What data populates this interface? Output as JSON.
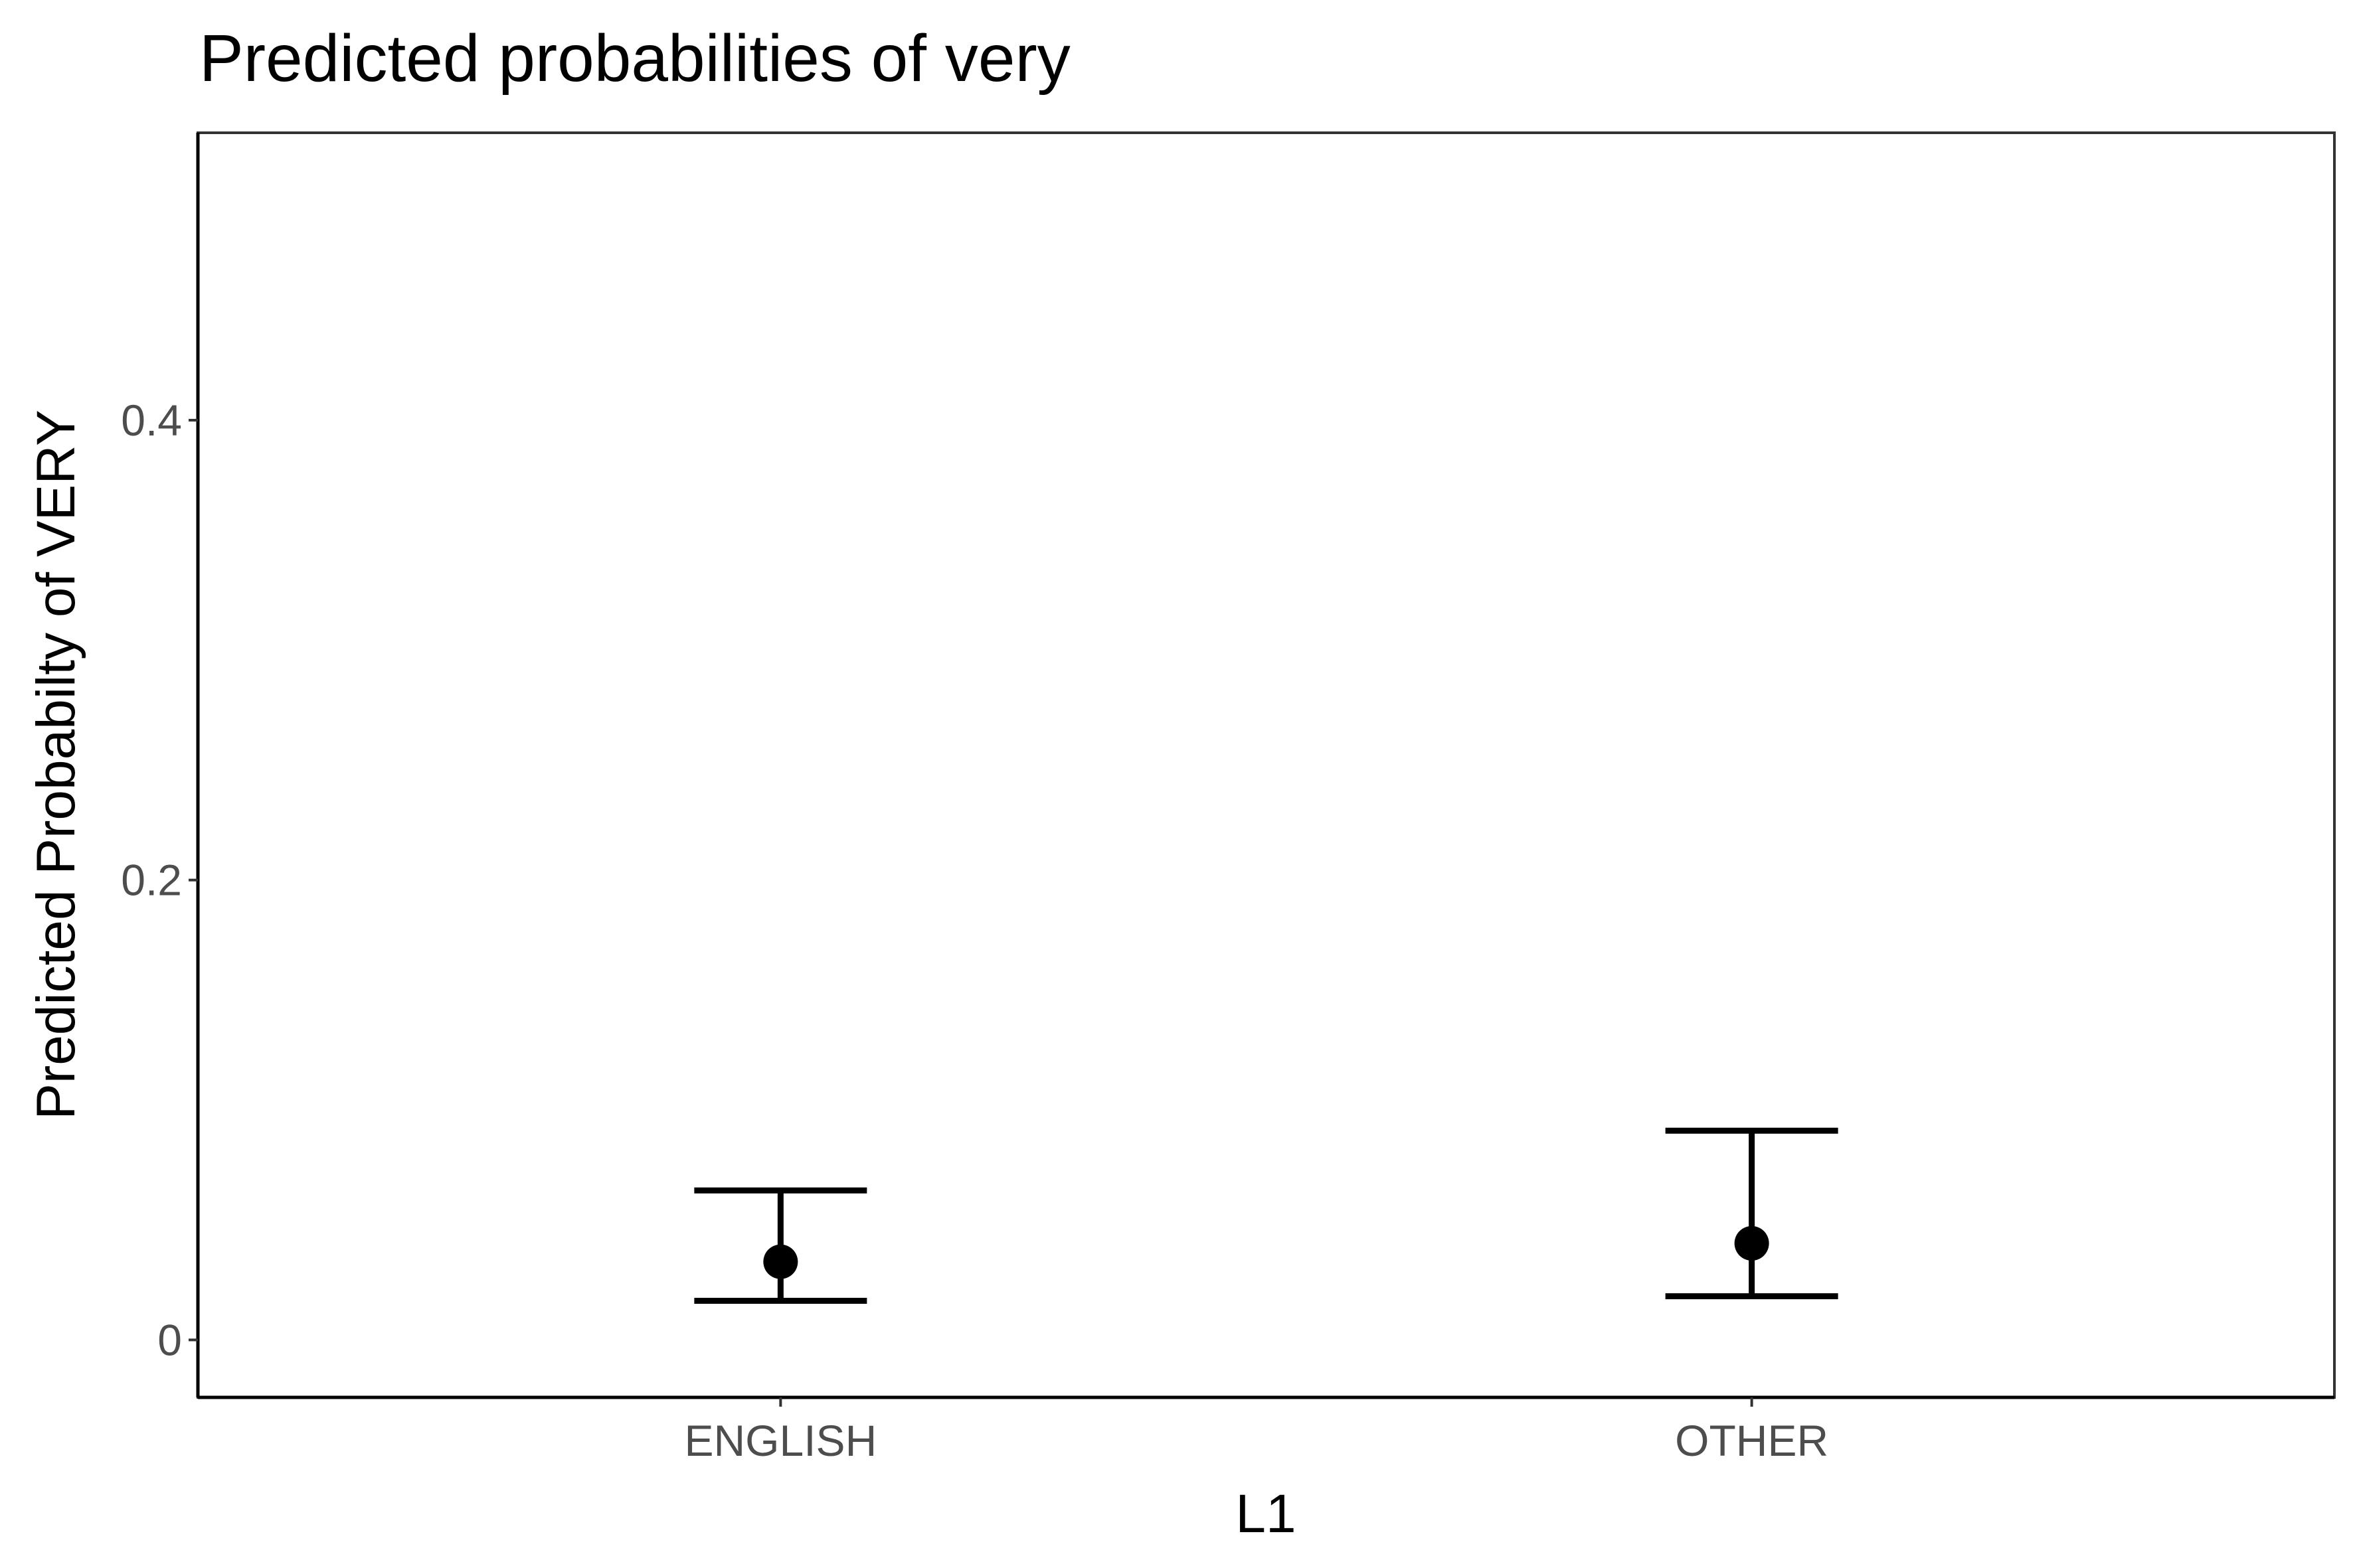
{
  "chart_data": {
    "type": "scatter",
    "title": "Predicted probabilities of very",
    "xlabel": "L1",
    "ylabel": "Predicted Probabilty of VERY",
    "categories": [
      "ENGLISH",
      "OTHER"
    ],
    "series": [
      {
        "values": [
          0.034,
          0.042
        ],
        "ci_lower": [
          0.017,
          0.019
        ],
        "ci_upper": [
          0.065,
          0.091
        ]
      }
    ],
    "y_ticks": [
      0,
      0.2,
      0.4
    ],
    "y_tick_labels": [
      "0",
      "0.2",
      "0.4"
    ],
    "ylim": [
      -0.025,
      0.525
    ],
    "grid": false,
    "legend": "none",
    "colors": {
      "points": "#000000",
      "errorbars": "#000000",
      "axis": "#000000",
      "tick_text": "#4d4d4d"
    }
  }
}
